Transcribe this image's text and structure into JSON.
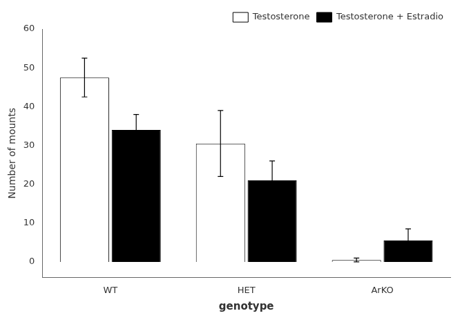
{
  "chart_data": {
    "type": "bar",
    "x_label": "genotype",
    "y_label": "Number of mounts",
    "categories": [
      "WT",
      "HET",
      "ArKO"
    ],
    "series": [
      {
        "name": "Testosterone",
        "color": "#ffffff",
        "values": [
          47.5,
          30.5,
          0.5
        ],
        "errors": [
          5.0,
          8.5,
          0.5
        ]
      },
      {
        "name": "Testosterone + Estradio",
        "color": "#000000",
        "values": [
          34.0,
          21.0,
          5.5
        ],
        "errors": [
          4.0,
          5.0,
          3.0
        ]
      }
    ],
    "ylim": [
      -4,
      60
    ],
    "yticks": [
      0,
      10,
      20,
      30,
      40,
      50,
      60
    ],
    "legend": "upper right",
    "grid": false
  }
}
